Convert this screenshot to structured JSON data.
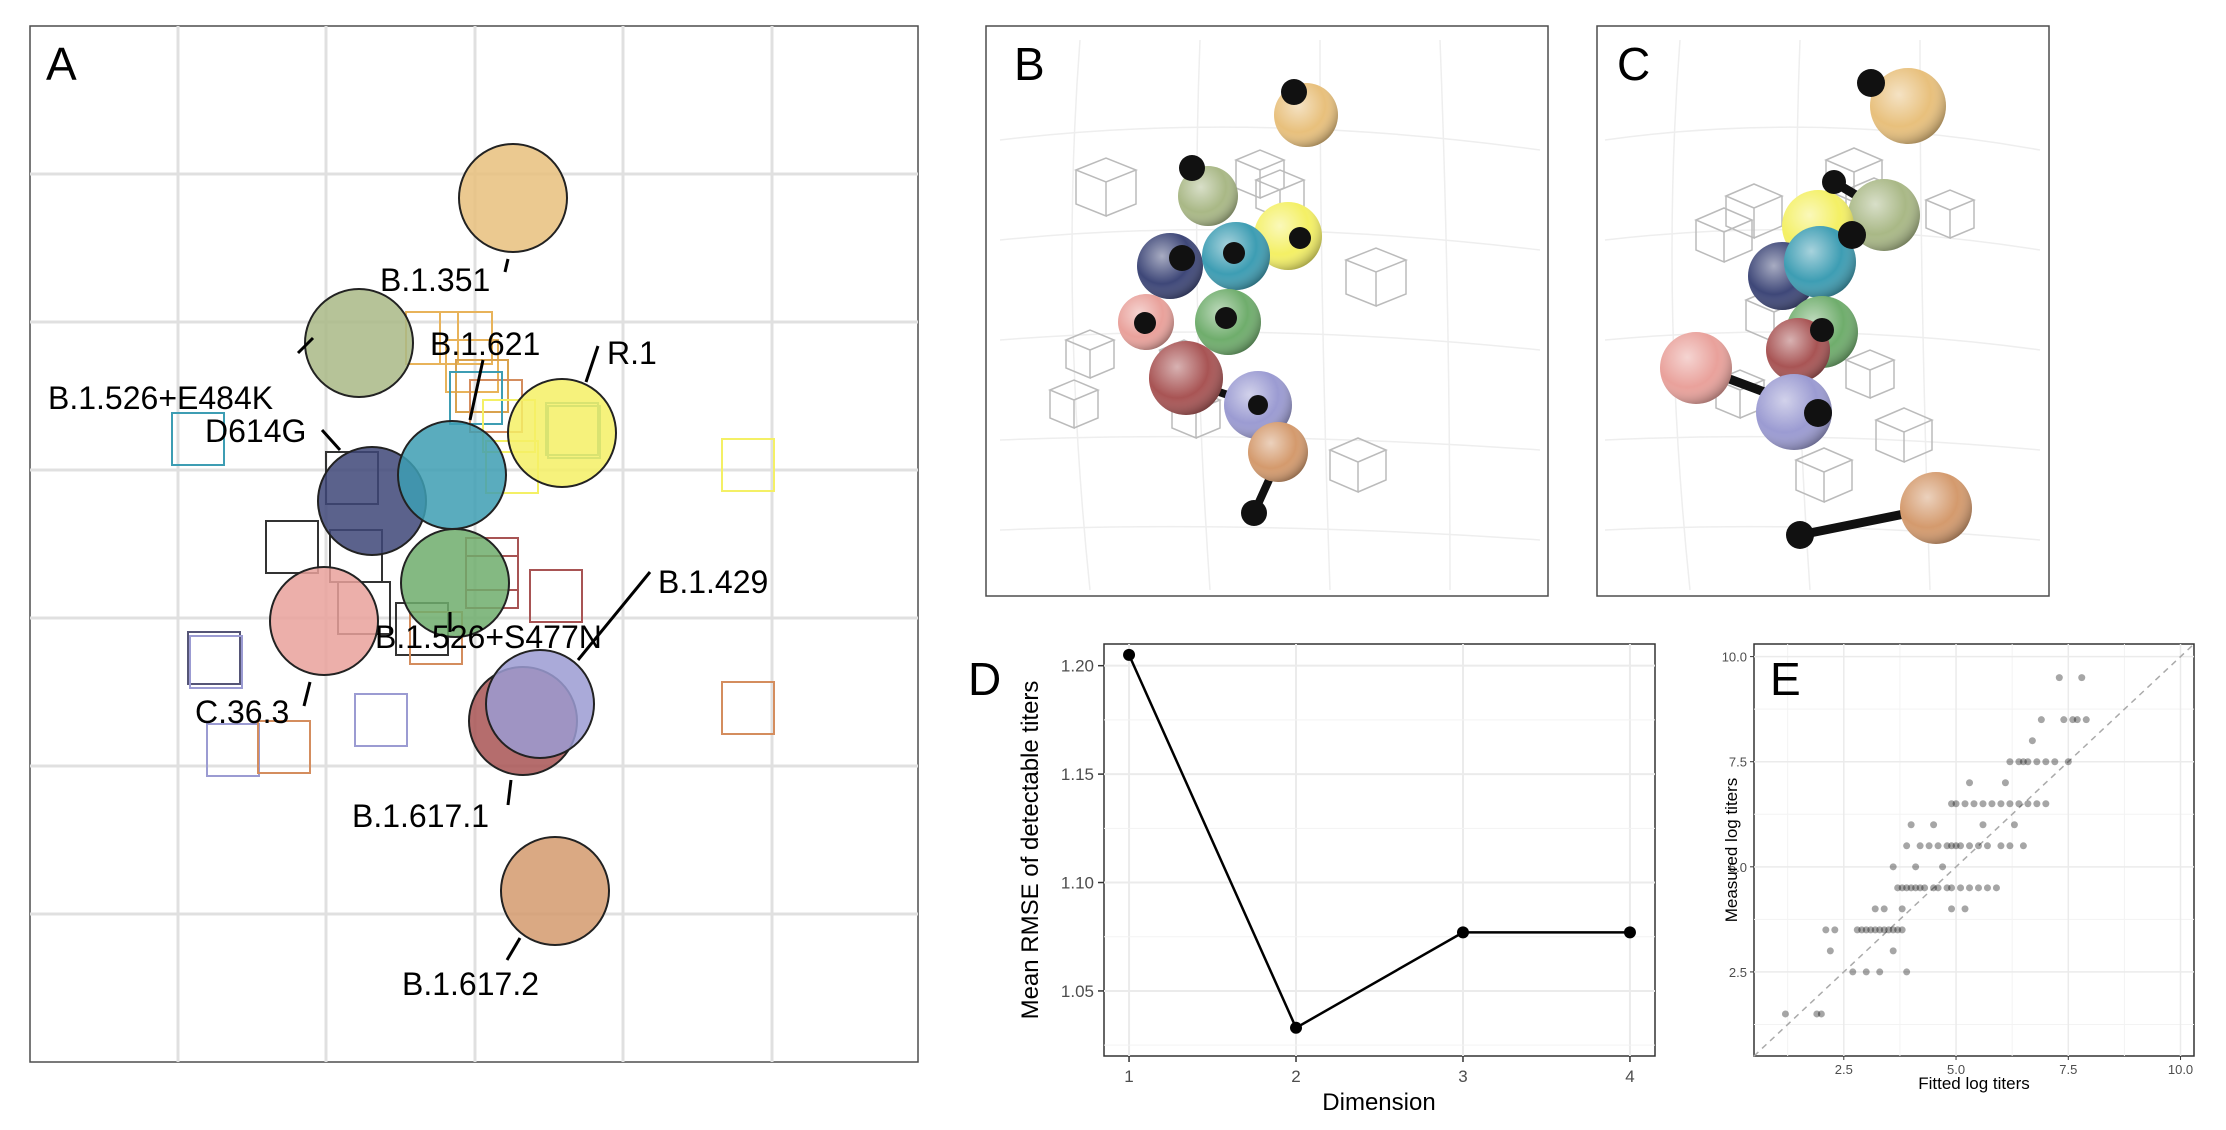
{
  "panels": {
    "A": "A",
    "B": "B",
    "C": "C",
    "D": "D",
    "E": "E"
  },
  "colors": {
    "B.1.351": "#e8c07c",
    "B.1.526+E484K": "#a9b886",
    "B.1.621": "#3d9db3",
    "R.1": "#f4f065",
    "D614G": "#3e4778",
    "B.1.526+S477N": "#6fad6c",
    "C.36.3": "#e9a19b",
    "B.1.429": "#9b9bd2",
    "B.1.617.1": "#a85454",
    "B.1.617.2": "#d49a6d"
  },
  "panel_a": {
    "antigen_labels": [
      "B.1.351",
      "B.1.526+E484K",
      "B.1.621",
      "R.1",
      "D614G",
      "B.1.526+S477N",
      "C.36.3",
      "B.1.429",
      "B.1.617.1",
      "B.1.617.2"
    ],
    "sera_groups": [
      "B.1.351",
      "B.1.526+E484K",
      "B.1.621",
      "R.1",
      "D614G",
      "B.1.526+S477N",
      "C.36.3",
      "B.1.429",
      "B.1.617.1",
      "B.1.617.2"
    ]
  },
  "chart_data": [
    {
      "type": "line",
      "panel": "D",
      "xlabel": "Dimension",
      "ylabel": "Mean RMSE of detectable titers",
      "x": [
        1,
        2,
        3,
        4
      ],
      "y": [
        1.205,
        1.033,
        1.077,
        1.077
      ],
      "xlim": [
        0.85,
        4.15
      ],
      "ylim": [
        1.02,
        1.21
      ],
      "xticks": [
        "1",
        "2",
        "3",
        "4"
      ],
      "yticks": [
        "1.05",
        "1.10",
        "1.15",
        "1.20"
      ],
      "grid": true
    },
    {
      "type": "scatter",
      "panel": "E",
      "xlabel": "Fitted log titers",
      "ylabel": "Measured log titers",
      "xlim": [
        0.5,
        10.3
      ],
      "ylim": [
        0.5,
        10.3
      ],
      "xticks": [
        "2.5",
        "5.0",
        "7.5",
        "10.0"
      ],
      "yticks": [
        "2.5",
        "5.0",
        "7.5",
        "10.0"
      ],
      "reference_line": "y = x",
      "grid": true,
      "points": [
        [
          1.2,
          1.5
        ],
        [
          1.9,
          1.5
        ],
        [
          2.0,
          1.5
        ],
        [
          2.1,
          3.5
        ],
        [
          2.3,
          3.5
        ],
        [
          2.2,
          3.0
        ],
        [
          2.7,
          2.5
        ],
        [
          2.8,
          3.5
        ],
        [
          2.9,
          3.5
        ],
        [
          3.0,
          3.5
        ],
        [
          3.1,
          3.5
        ],
        [
          3.2,
          3.5
        ],
        [
          3.3,
          3.5
        ],
        [
          3.4,
          3.5
        ],
        [
          3.5,
          3.5
        ],
        [
          3.6,
          3.5
        ],
        [
          3.7,
          3.5
        ],
        [
          3.8,
          3.5
        ],
        [
          3.0,
          2.5
        ],
        [
          3.3,
          2.5
        ],
        [
          3.9,
          2.5
        ],
        [
          3.6,
          3.0
        ],
        [
          3.8,
          4.0
        ],
        [
          3.9,
          4.5
        ],
        [
          3.2,
          4.0
        ],
        [
          3.4,
          4.0
        ],
        [
          3.7,
          4.5
        ],
        [
          3.8,
          4.5
        ],
        [
          4.0,
          4.5
        ],
        [
          4.1,
          4.5
        ],
        [
          4.2,
          4.5
        ],
        [
          4.3,
          4.5
        ],
        [
          4.5,
          4.5
        ],
        [
          4.6,
          4.5
        ],
        [
          4.8,
          4.5
        ],
        [
          4.9,
          4.5
        ],
        [
          5.1,
          4.5
        ],
        [
          5.3,
          4.5
        ],
        [
          5.5,
          4.5
        ],
        [
          5.7,
          4.5
        ],
        [
          5.9,
          4.5
        ],
        [
          4.9,
          4.0
        ],
        [
          5.2,
          4.0
        ],
        [
          3.6,
          5.0
        ],
        [
          4.1,
          5.0
        ],
        [
          4.7,
          5.0
        ],
        [
          3.9,
          5.5
        ],
        [
          4.2,
          5.5
        ],
        [
          4.4,
          5.5
        ],
        [
          4.6,
          5.5
        ],
        [
          4.8,
          5.5
        ],
        [
          4.9,
          5.5
        ],
        [
          5.0,
          5.5
        ],
        [
          5.1,
          5.5
        ],
        [
          5.3,
          5.5
        ],
        [
          5.5,
          5.5
        ],
        [
          5.7,
          5.5
        ],
        [
          6.0,
          5.5
        ],
        [
          6.2,
          5.5
        ],
        [
          6.5,
          5.5
        ],
        [
          4.0,
          6.0
        ],
        [
          4.5,
          6.0
        ],
        [
          5.6,
          6.0
        ],
        [
          6.3,
          6.0
        ],
        [
          4.9,
          6.5
        ],
        [
          5.0,
          6.5
        ],
        [
          5.2,
          6.5
        ],
        [
          5.4,
          6.5
        ],
        [
          5.6,
          6.5
        ],
        [
          5.8,
          6.5
        ],
        [
          6.0,
          6.5
        ],
        [
          6.2,
          6.5
        ],
        [
          6.4,
          6.5
        ],
        [
          6.6,
          6.5
        ],
        [
          6.8,
          6.5
        ],
        [
          7.0,
          6.5
        ],
        [
          5.3,
          7.0
        ],
        [
          6.1,
          7.0
        ],
        [
          6.2,
          7.5
        ],
        [
          6.4,
          7.5
        ],
        [
          6.5,
          7.5
        ],
        [
          6.6,
          7.5
        ],
        [
          6.8,
          7.5
        ],
        [
          7.0,
          7.5
        ],
        [
          7.2,
          7.5
        ],
        [
          7.5,
          7.5
        ],
        [
          6.7,
          8.0
        ],
        [
          7.6,
          8.5
        ],
        [
          7.7,
          8.5
        ],
        [
          7.9,
          8.5
        ],
        [
          7.3,
          9.5
        ],
        [
          7.8,
          9.5
        ],
        [
          7.4,
          8.5
        ],
        [
          6.9,
          8.5
        ]
      ]
    }
  ]
}
